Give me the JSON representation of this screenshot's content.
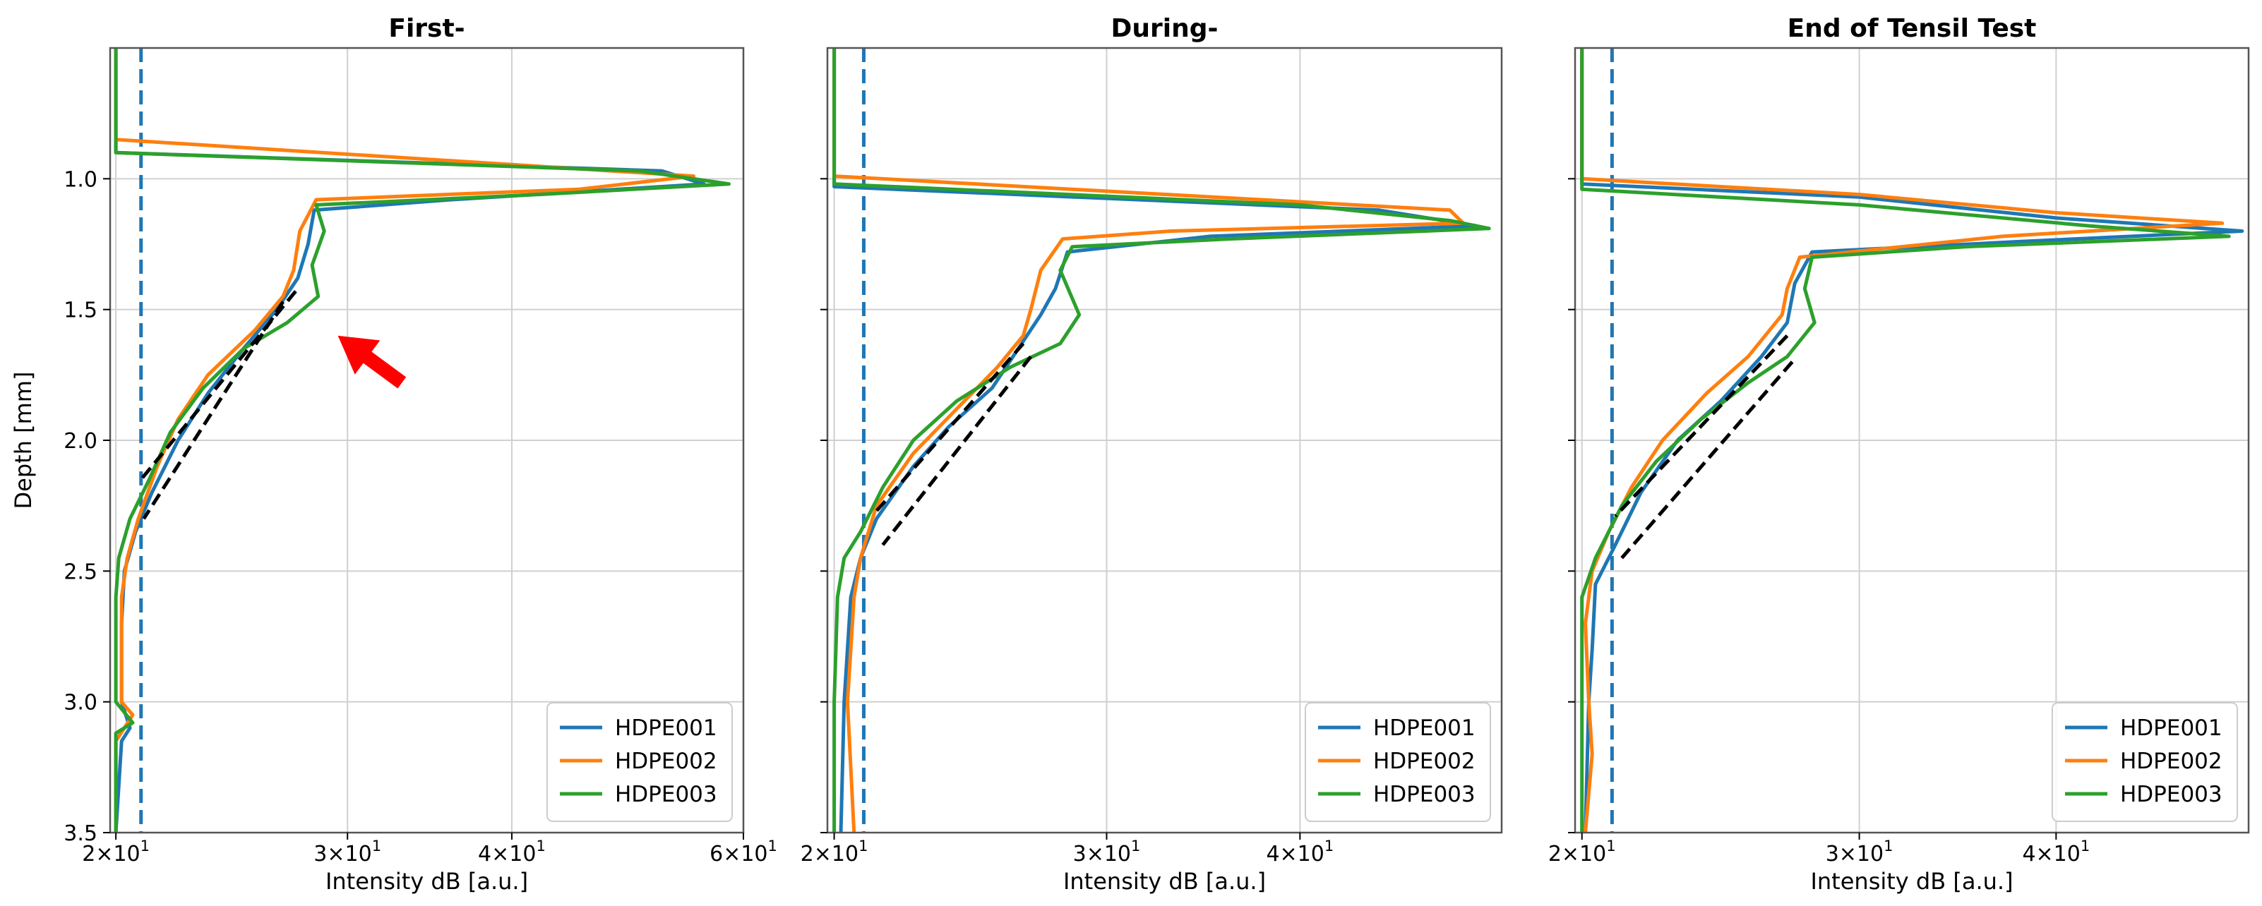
{
  "chart_data": [
    {
      "type": "line",
      "panel": "first",
      "title": "First-",
      "xlabel": "Intensity dB [a.u.]",
      "ylabel": "Depth [mm]",
      "xscale": "log",
      "xlim": [
        19.8,
        60
      ],
      "ylim": [
        3.5,
        0.5
      ],
      "x_ticks": [
        {
          "v": 20,
          "m": "2",
          "e": "1"
        },
        {
          "v": 30,
          "m": "3",
          "e": "1"
        },
        {
          "v": 40,
          "m": "4",
          "e": "1"
        },
        {
          "v": 60,
          "m": "6",
          "e": "1"
        }
      ],
      "y_ticks": [
        "1.0",
        "1.5",
        "2.0",
        "2.5",
        "3.0",
        "3.5"
      ],
      "show_y_ticklabels": true,
      "grid": true,
      "threshold_x": 20.9,
      "legend": {
        "placement": "lower-right",
        "entries": [
          "HDPE001",
          "HDPE002",
          "HDPE003"
        ]
      },
      "annotation": {
        "type": "arrow",
        "color": "#ff0000",
        "tip": [
          29.5,
          1.6
        ],
        "tail": [
          33.0,
          1.78
        ]
      },
      "series": [
        {
          "name": "HDPE001",
          "color": "#1f77b4",
          "points": [
            [
              20,
              0.5
            ],
            [
              20,
              0.9
            ],
            [
              52,
              0.97
            ],
            [
              56,
              1.02
            ],
            [
              36,
              1.08
            ],
            [
              28.3,
              1.12
            ],
            [
              28.0,
              1.25
            ],
            [
              27.5,
              1.38
            ],
            [
              26.5,
              1.5
            ],
            [
              25.0,
              1.65
            ],
            [
              23.5,
              1.82
            ],
            [
              22.3,
              2.0
            ],
            [
              21.3,
              2.2
            ],
            [
              20.7,
              2.35
            ],
            [
              20.3,
              2.5
            ],
            [
              20.2,
              2.7
            ],
            [
              20.2,
              3.0
            ],
            [
              20.5,
              3.1
            ],
            [
              20.2,
              3.15
            ],
            [
              20.0,
              3.5
            ]
          ]
        },
        {
          "name": "HDPE002",
          "color": "#ff7f0e",
          "points": [
            [
              20,
              0.5
            ],
            [
              20,
              0.85
            ],
            [
              55,
              0.99
            ],
            [
              45,
              1.04
            ],
            [
              28.4,
              1.08
            ],
            [
              27.6,
              1.2
            ],
            [
              27.3,
              1.35
            ],
            [
              26.8,
              1.45
            ],
            [
              25.5,
              1.58
            ],
            [
              23.5,
              1.75
            ],
            [
              22.3,
              1.92
            ],
            [
              21.5,
              2.1
            ],
            [
              20.8,
              2.3
            ],
            [
              20.4,
              2.45
            ],
            [
              20.2,
              2.6
            ],
            [
              20.2,
              2.8
            ],
            [
              20.2,
              3.0
            ],
            [
              20.6,
              3.05
            ],
            [
              20.0,
              3.15
            ],
            [
              20.0,
              3.5
            ]
          ]
        },
        {
          "name": "HDPE003",
          "color": "#2ca02c",
          "points": [
            [
              20,
              0.5
            ],
            [
              20,
              0.9
            ],
            [
              50,
              0.97
            ],
            [
              58.5,
              1.02
            ],
            [
              42,
              1.06
            ],
            [
              28.4,
              1.1
            ],
            [
              28.8,
              1.2
            ],
            [
              28.2,
              1.33
            ],
            [
              28.5,
              1.45
            ],
            [
              27.0,
              1.55
            ],
            [
              25.0,
              1.65
            ],
            [
              23.3,
              1.8
            ],
            [
              22.0,
              1.97
            ],
            [
              21.2,
              2.15
            ],
            [
              20.5,
              2.3
            ],
            [
              20.1,
              2.45
            ],
            [
              20.0,
              2.6
            ],
            [
              20.0,
              3.0
            ],
            [
              20.6,
              3.08
            ],
            [
              20.0,
              3.12
            ],
            [
              20.0,
              3.5
            ]
          ]
        }
      ],
      "fits": [
        [
          [
            26.8,
            1.47
          ],
          [
            21.0,
            2.3
          ]
        ],
        [
          [
            27.4,
            1.43
          ],
          [
            20.9,
            2.15
          ]
        ]
      ]
    },
    {
      "type": "line",
      "panel": "during",
      "title": "During-",
      "xlabel": "Intensity dB [a.u.]",
      "ylabel": "",
      "xscale": "log",
      "xlim": [
        19.8,
        54
      ],
      "ylim": [
        3.5,
        0.5
      ],
      "x_ticks": [
        {
          "v": 20,
          "m": "2",
          "e": "1"
        },
        {
          "v": 30,
          "m": "3",
          "e": "1"
        },
        {
          "v": 40,
          "m": "4",
          "e": "1"
        }
      ],
      "y_ticks": [
        "1.0",
        "1.5",
        "2.0",
        "2.5",
        "3.0",
        "3.5"
      ],
      "show_y_ticklabels": false,
      "grid": true,
      "threshold_x": 20.9,
      "legend": {
        "placement": "lower-right",
        "entries": [
          "HDPE001",
          "HDPE002",
          "HDPE003"
        ]
      },
      "series": [
        {
          "name": "HDPE001",
          "color": "#1f77b4",
          "points": [
            [
              20,
              0.5
            ],
            [
              20,
              1.03
            ],
            [
              45,
              1.12
            ],
            [
              52,
              1.18
            ],
            [
              35,
              1.22
            ],
            [
              28.3,
              1.28
            ],
            [
              27.8,
              1.42
            ],
            [
              27.2,
              1.52
            ],
            [
              26.3,
              1.65
            ],
            [
              25.3,
              1.8
            ],
            [
              23.7,
              1.95
            ],
            [
              22.5,
              2.1
            ],
            [
              21.3,
              2.3
            ],
            [
              20.8,
              2.45
            ],
            [
              20.5,
              2.6
            ],
            [
              20.4,
              2.8
            ],
            [
              20.3,
              3.0
            ],
            [
              20.2,
              3.5
            ]
          ]
        },
        {
          "name": "HDPE002",
          "color": "#ff7f0e",
          "points": [
            [
              20,
              0.5
            ],
            [
              20,
              0.99
            ],
            [
              50,
              1.12
            ],
            [
              51,
              1.17
            ],
            [
              33,
              1.2
            ],
            [
              28.1,
              1.23
            ],
            [
              27.2,
              1.35
            ],
            [
              26.8,
              1.5
            ],
            [
              26.5,
              1.6
            ],
            [
              25.5,
              1.72
            ],
            [
              24.0,
              1.88
            ],
            [
              22.5,
              2.05
            ],
            [
              21.3,
              2.25
            ],
            [
              20.8,
              2.45
            ],
            [
              20.6,
              2.6
            ],
            [
              20.5,
              2.8
            ],
            [
              20.4,
              3.0
            ],
            [
              20.6,
              3.5
            ]
          ]
        },
        {
          "name": "HDPE003",
          "color": "#2ca02c",
          "points": [
            [
              20,
              0.5
            ],
            [
              20,
              1.02
            ],
            [
              40,
              1.1
            ],
            [
              50,
              1.16
            ],
            [
              53,
              1.19
            ],
            [
              36,
              1.23
            ],
            [
              28.5,
              1.26
            ],
            [
              28.0,
              1.35
            ],
            [
              28.8,
              1.52
            ],
            [
              28.0,
              1.63
            ],
            [
              26.0,
              1.72
            ],
            [
              24.0,
              1.85
            ],
            [
              22.5,
              2.0
            ],
            [
              21.5,
              2.18
            ],
            [
              20.8,
              2.35
            ],
            [
              20.3,
              2.45
            ],
            [
              20.1,
              2.6
            ],
            [
              20.0,
              3.0
            ],
            [
              20.0,
              3.5
            ]
          ]
        }
      ],
      "fits": [
        [
          [
            26.5,
            1.63
          ],
          [
            21.3,
            2.27
          ]
        ],
        [
          [
            26.8,
            1.68
          ],
          [
            21.5,
            2.4
          ]
        ]
      ]
    },
    {
      "type": "line",
      "panel": "end",
      "title": "End of Tensil Test",
      "xlabel": "Intensity dB [a.u.]",
      "ylabel": "",
      "xscale": "log",
      "xlim": [
        19.8,
        53
      ],
      "ylim": [
        3.5,
        0.5
      ],
      "x_ticks": [
        {
          "v": 20,
          "m": "2",
          "e": "1"
        },
        {
          "v": 30,
          "m": "3",
          "e": "1"
        },
        {
          "v": 40,
          "m": "4",
          "e": "1"
        }
      ],
      "y_ticks": [
        "1.0",
        "1.5",
        "2.0",
        "2.5",
        "3.0",
        "3.5"
      ],
      "show_y_ticklabels": false,
      "grid": true,
      "threshold_x": 20.9,
      "legend": {
        "placement": "lower-right",
        "entries": [
          "HDPE001",
          "HDPE002",
          "HDPE003"
        ]
      },
      "series": [
        {
          "name": "HDPE001",
          "color": "#1f77b4",
          "points": [
            [
              20,
              0.5
            ],
            [
              20,
              1.02
            ],
            [
              30,
              1.07
            ],
            [
              40,
              1.15
            ],
            [
              52.5,
              1.2
            ],
            [
              38,
              1.24
            ],
            [
              28,
              1.28
            ],
            [
              27.3,
              1.4
            ],
            [
              27.0,
              1.55
            ],
            [
              26.0,
              1.68
            ],
            [
              24.5,
              1.85
            ],
            [
              23.0,
              2.0
            ],
            [
              21.8,
              2.2
            ],
            [
              21.0,
              2.4
            ],
            [
              20.4,
              2.55
            ],
            [
              20.3,
              2.8
            ],
            [
              20.2,
              3.0
            ],
            [
              20.1,
              3.5
            ]
          ]
        },
        {
          "name": "HDPE002",
          "color": "#ff7f0e",
          "points": [
            [
              20,
              0.5
            ],
            [
              20,
              1.0
            ],
            [
              30,
              1.06
            ],
            [
              40,
              1.13
            ],
            [
              51,
              1.17
            ],
            [
              37,
              1.22
            ],
            [
              27.5,
              1.3
            ],
            [
              27.0,
              1.42
            ],
            [
              26.8,
              1.52
            ],
            [
              25.5,
              1.68
            ],
            [
              24.0,
              1.82
            ],
            [
              22.5,
              2.0
            ],
            [
              21.5,
              2.18
            ],
            [
              20.8,
              2.35
            ],
            [
              20.3,
              2.5
            ],
            [
              20.1,
              2.7
            ],
            [
              20.2,
              3.0
            ],
            [
              20.3,
              3.2
            ],
            [
              20.1,
              3.5
            ]
          ]
        },
        {
          "name": "HDPE003",
          "color": "#2ca02c",
          "points": [
            [
              20,
              0.5
            ],
            [
              20,
              1.04
            ],
            [
              30,
              1.1
            ],
            [
              42,
              1.18
            ],
            [
              51.5,
              1.22
            ],
            [
              35,
              1.26
            ],
            [
              28,
              1.3
            ],
            [
              27.7,
              1.42
            ],
            [
              28.1,
              1.55
            ],
            [
              27.0,
              1.68
            ],
            [
              25.5,
              1.78
            ],
            [
              23.8,
              1.92
            ],
            [
              22.3,
              2.08
            ],
            [
              21.2,
              2.25
            ],
            [
              20.4,
              2.45
            ],
            [
              20.0,
              2.6
            ],
            [
              20.0,
              3.0
            ],
            [
              20.0,
              3.5
            ]
          ]
        }
      ],
      "fits": [
        [
          [
            27.0,
            1.6
          ],
          [
            21.0,
            2.29
          ]
        ],
        [
          [
            27.2,
            1.7
          ],
          [
            21.2,
            2.45
          ]
        ]
      ]
    }
  ]
}
